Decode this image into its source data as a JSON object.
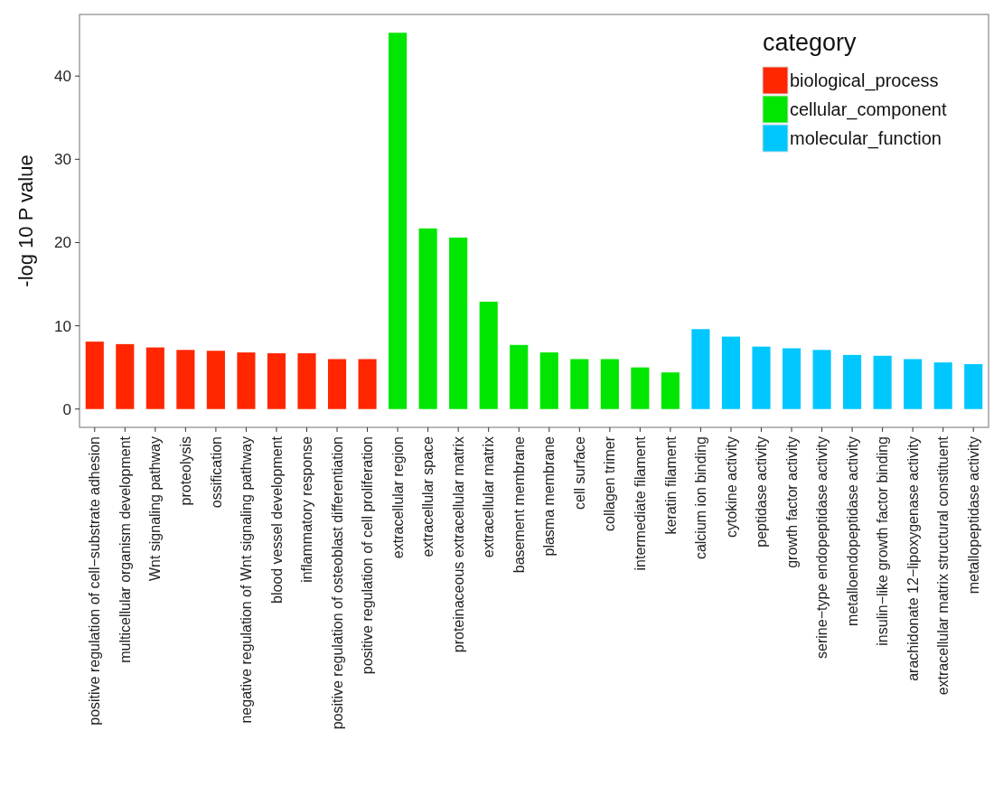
{
  "chart_data": {
    "type": "bar",
    "ylabel": "-log 10 P value",
    "legend_title": "category",
    "legend": "top right",
    "grid": false,
    "categories": [
      "positive regulation of cell−substrate adhesion",
      "multicellular organism development",
      "Wnt signaling pathway",
      "proteolysis",
      "ossification",
      "negative regulation of Wnt signaling pathway",
      "blood vessel development",
      "inflammatory response",
      "positive regulation of osteoblast differentiation",
      "positive regulation of cell proliferation",
      "extracellular region",
      "extracellular space",
      "proteinaceous extracellular matrix",
      "extracellular matrix",
      "basement membrane",
      "plasma membrane",
      "cell surface",
      "collagen trimer",
      "intermediate filament",
      "keratin filament",
      "calcium ion binding",
      "cytokine activity",
      "peptidase activity",
      "growth factor activity",
      "serine−type endopeptidase activity",
      "metalloendopeptidase activity",
      "insulin−like growth factor binding",
      "arachidonate 12−lipoxygenase activity",
      "extracellular matrix structural constituent",
      "metallopeptidase activity"
    ],
    "series": [
      {
        "name": "biological_process",
        "color": "#ff2600",
        "values": [
          8.1,
          7.8,
          7.4,
          7.1,
          7.0,
          6.8,
          6.7,
          6.7,
          6.0,
          6.0,
          null,
          null,
          null,
          null,
          null,
          null,
          null,
          null,
          null,
          null,
          null,
          null,
          null,
          null,
          null,
          null,
          null,
          null,
          null,
          null
        ]
      },
      {
        "name": "cellular_component",
        "color": "#00e600",
        "values": [
          null,
          null,
          null,
          null,
          null,
          null,
          null,
          null,
          null,
          null,
          45.2,
          21.7,
          20.6,
          12.9,
          7.7,
          6.8,
          6.0,
          6.0,
          5.0,
          4.4,
          null,
          null,
          null,
          null,
          null,
          null,
          null,
          null,
          null,
          null
        ]
      },
      {
        "name": "molecular_function",
        "color": "#00c8ff",
        "values": [
          null,
          null,
          null,
          null,
          null,
          null,
          null,
          null,
          null,
          null,
          null,
          null,
          null,
          null,
          null,
          null,
          null,
          null,
          null,
          null,
          9.6,
          8.7,
          7.5,
          7.3,
          7.1,
          6.5,
          6.4,
          6.0,
          5.6,
          5.4
        ]
      }
    ],
    "ylim": [
      -2.2,
      47.4
    ],
    "yticks": [
      0,
      10,
      20,
      30,
      40
    ]
  }
}
